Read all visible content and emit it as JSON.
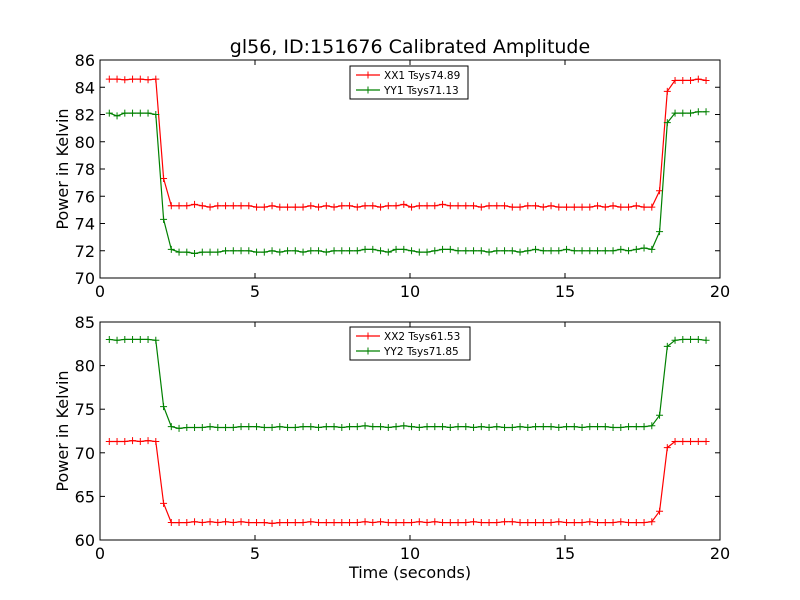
{
  "figure": {
    "title": "gl56, ID:151676 Calibrated Amplitude",
    "xlabel": "Time (seconds)"
  },
  "chart_data": [
    {
      "type": "line",
      "ylabel": "Power in Kelvin",
      "xlim": [
        0,
        20
      ],
      "ylim": [
        70,
        86
      ],
      "xticks": [
        "0",
        "5",
        "10",
        "15",
        "20"
      ],
      "xtick_values": [
        0,
        5,
        10,
        15,
        20
      ],
      "yticks": [
        "70",
        "72",
        "74",
        "76",
        "78",
        "80",
        "82",
        "84",
        "86"
      ],
      "ytick_values": [
        70,
        72,
        74,
        76,
        78,
        80,
        82,
        84,
        86
      ],
      "legend_position": "top-center",
      "x": [
        0.3,
        0.55,
        0.8,
        1.05,
        1.3,
        1.55,
        1.8,
        2.05,
        2.3,
        2.55,
        2.8,
        3.05,
        3.3,
        3.55,
        3.8,
        4.05,
        4.3,
        4.55,
        4.8,
        5.05,
        5.3,
        5.55,
        5.8,
        6.05,
        6.3,
        6.55,
        6.8,
        7.05,
        7.3,
        7.55,
        7.8,
        8.05,
        8.3,
        8.55,
        8.8,
        9.05,
        9.3,
        9.55,
        9.8,
        10.05,
        10.3,
        10.55,
        10.8,
        11.05,
        11.3,
        11.55,
        11.8,
        12.05,
        12.3,
        12.55,
        12.8,
        13.05,
        13.3,
        13.55,
        13.8,
        14.05,
        14.3,
        14.55,
        14.8,
        15.05,
        15.3,
        15.55,
        15.8,
        16.05,
        16.3,
        16.55,
        16.8,
        17.05,
        17.3,
        17.55,
        17.8,
        18.05,
        18.3,
        18.55,
        18.8,
        19.05,
        19.3,
        19.55
      ],
      "series": [
        {
          "name": "XX1 Tsys74.89",
          "color": "#ff0000",
          "values": [
            84.6,
            84.6,
            84.55,
            84.6,
            84.6,
            84.55,
            84.6,
            77.3,
            75.3,
            75.3,
            75.3,
            75.4,
            75.3,
            75.2,
            75.3,
            75.3,
            75.3,
            75.3,
            75.3,
            75.2,
            75.2,
            75.3,
            75.2,
            75.2,
            75.2,
            75.2,
            75.3,
            75.2,
            75.3,
            75.2,
            75.3,
            75.3,
            75.2,
            75.3,
            75.3,
            75.2,
            75.3,
            75.3,
            75.4,
            75.2,
            75.3,
            75.3,
            75.3,
            75.4,
            75.3,
            75.3,
            75.3,
            75.3,
            75.2,
            75.3,
            75.3,
            75.3,
            75.2,
            75.2,
            75.3,
            75.3,
            75.2,
            75.3,
            75.2,
            75.2,
            75.2,
            75.2,
            75.2,
            75.3,
            75.2,
            75.3,
            75.2,
            75.2,
            75.3,
            75.2,
            75.2,
            76.4,
            83.7,
            84.5,
            84.5,
            84.5,
            84.6,
            84.5
          ]
        },
        {
          "name": "YY1 Tsys71.13",
          "color": "#008000",
          "values": [
            82.1,
            81.9,
            82.1,
            82.1,
            82.1,
            82.1,
            82.0,
            74.3,
            72.1,
            71.9,
            71.9,
            71.8,
            71.9,
            71.9,
            71.9,
            72.0,
            72.0,
            72.0,
            72.0,
            71.9,
            71.9,
            72.0,
            71.9,
            72.0,
            72.0,
            71.9,
            72.0,
            72.0,
            71.9,
            72.0,
            72.0,
            72.0,
            72.0,
            72.1,
            72.1,
            72.0,
            71.9,
            72.1,
            72.1,
            72.0,
            71.9,
            71.9,
            72.0,
            72.1,
            72.1,
            72.0,
            72.0,
            72.0,
            72.0,
            71.9,
            72.0,
            72.0,
            72.0,
            71.9,
            72.0,
            72.1,
            72.0,
            72.0,
            72.0,
            72.1,
            72.0,
            72.0,
            72.0,
            72.0,
            72.0,
            72.0,
            72.1,
            72.0,
            72.1,
            72.2,
            72.1,
            73.4,
            81.4,
            82.1,
            82.1,
            82.1,
            82.2,
            82.2
          ]
        }
      ]
    },
    {
      "type": "line",
      "ylabel": "Power in Kelvin",
      "xlim": [
        0,
        20
      ],
      "ylim": [
        60,
        85
      ],
      "xticks": [
        "0",
        "5",
        "10",
        "15",
        "20"
      ],
      "xtick_values": [
        0,
        5,
        10,
        15,
        20
      ],
      "yticks": [
        "60",
        "65",
        "70",
        "75",
        "80",
        "85"
      ],
      "ytick_values": [
        60,
        65,
        70,
        75,
        80,
        85
      ],
      "legend_position": "top-center",
      "x": [
        0.3,
        0.55,
        0.8,
        1.05,
        1.3,
        1.55,
        1.8,
        2.05,
        2.3,
        2.55,
        2.8,
        3.05,
        3.3,
        3.55,
        3.8,
        4.05,
        4.3,
        4.55,
        4.8,
        5.05,
        5.3,
        5.55,
        5.8,
        6.05,
        6.3,
        6.55,
        6.8,
        7.05,
        7.3,
        7.55,
        7.8,
        8.05,
        8.3,
        8.55,
        8.8,
        9.05,
        9.3,
        9.55,
        9.8,
        10.05,
        10.3,
        10.55,
        10.8,
        11.05,
        11.3,
        11.55,
        11.8,
        12.05,
        12.3,
        12.55,
        12.8,
        13.05,
        13.3,
        13.55,
        13.8,
        14.05,
        14.3,
        14.55,
        14.8,
        15.05,
        15.3,
        15.55,
        15.8,
        16.05,
        16.3,
        16.55,
        16.8,
        17.05,
        17.3,
        17.55,
        17.8,
        18.05,
        18.3,
        18.55,
        18.8,
        19.05,
        19.3,
        19.55
      ],
      "series": [
        {
          "name": "XX2 Tsys61.53",
          "color": "#ff0000",
          "values": [
            71.3,
            71.3,
            71.3,
            71.4,
            71.3,
            71.4,
            71.3,
            64.2,
            62.0,
            62.0,
            62.0,
            62.1,
            62.0,
            62.1,
            62.0,
            62.1,
            62.0,
            62.1,
            62.0,
            62.0,
            62.0,
            61.9,
            62.0,
            62.0,
            62.0,
            62.0,
            62.1,
            62.0,
            62.0,
            62.0,
            62.0,
            62.0,
            62.0,
            62.1,
            62.0,
            62.1,
            62.0,
            62.0,
            62.0,
            62.0,
            62.1,
            62.0,
            62.1,
            62.0,
            62.0,
            62.0,
            62.0,
            62.1,
            62.0,
            62.0,
            62.0,
            62.1,
            62.1,
            62.0,
            62.0,
            62.0,
            62.0,
            62.0,
            62.1,
            62.0,
            62.0,
            62.0,
            62.1,
            62.0,
            62.0,
            62.0,
            62.1,
            62.0,
            62.0,
            62.0,
            62.1,
            63.3,
            70.6,
            71.3,
            71.3,
            71.3,
            71.3,
            71.3
          ]
        },
        {
          "name": "YY2 Tsys71.85",
          "color": "#008000",
          "values": [
            83.0,
            82.9,
            83.0,
            83.0,
            83.0,
            83.0,
            82.9,
            75.3,
            73.0,
            72.8,
            72.9,
            72.9,
            72.9,
            73.0,
            72.9,
            72.9,
            72.9,
            73.0,
            73.0,
            73.0,
            72.9,
            72.9,
            73.0,
            72.9,
            72.9,
            73.0,
            73.0,
            72.9,
            73.0,
            73.0,
            72.9,
            73.0,
            73.0,
            73.1,
            73.0,
            73.0,
            72.9,
            73.0,
            73.1,
            73.0,
            72.9,
            73.0,
            73.0,
            73.0,
            72.9,
            73.0,
            73.0,
            72.9,
            73.0,
            72.9,
            73.0,
            72.9,
            72.9,
            73.0,
            72.9,
            73.0,
            73.0,
            73.0,
            72.9,
            73.0,
            73.0,
            72.9,
            73.0,
            73.0,
            73.0,
            72.9,
            72.9,
            73.0,
            73.0,
            73.0,
            73.1,
            74.3,
            82.2,
            82.9,
            83.0,
            83.0,
            83.0,
            82.9
          ]
        }
      ]
    }
  ]
}
